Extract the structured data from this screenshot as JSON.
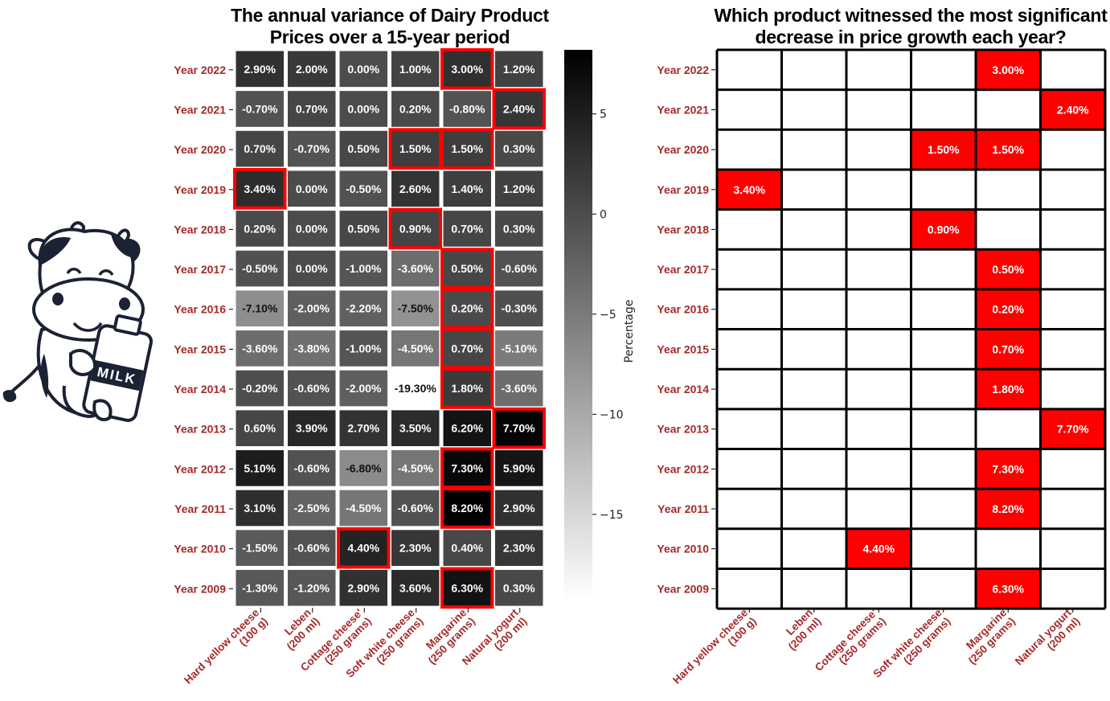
{
  "colors": {
    "label_color": "#a52a2a",
    "highlight": "#ff0000",
    "grid_line": "#000000",
    "heat_low": "#ffffff",
    "heat_high": "#000000"
  },
  "illustration": {
    "icon": "cow-holding-milk-bottle-icon",
    "bottle_text": "MILK"
  },
  "chart_data": [
    {
      "type": "heatmap",
      "title": "The annual variance of Dairy Product\nPrices over a 15-year period",
      "rows": [
        "Year 2022",
        "Year 2021",
        "Year 2020",
        "Year 2019",
        "Year 2018",
        "Year 2017",
        "Year 2016",
        "Year 2015",
        "Year 2014",
        "Year 2013",
        "Year 2012",
        "Year 2011",
        "Year 2010",
        "Year 2009"
      ],
      "columns": [
        "Hard yellow cheese\n(100 g)",
        "Leben\n(200 ml)",
        "Cottage cheese'\n(250 grams)",
        "Soft white cheese\n(250 grams)",
        "Margarine\n(250 grams)",
        "Natural yogurt\n(200 ml)"
      ],
      "values": [
        [
          2.9,
          2.0,
          0.0,
          1.0,
          3.0,
          1.2
        ],
        [
          -0.7,
          0.7,
          0.0,
          0.2,
          -0.8,
          2.4
        ],
        [
          0.7,
          -0.7,
          0.5,
          1.5,
          1.5,
          0.3
        ],
        [
          3.4,
          0.0,
          -0.5,
          2.6,
          1.4,
          1.2
        ],
        [
          0.2,
          0.0,
          0.5,
          0.9,
          0.7,
          0.3
        ],
        [
          -0.5,
          0.0,
          -1.0,
          -3.6,
          0.5,
          -0.6
        ],
        [
          -7.1,
          -2.0,
          -2.2,
          -7.5,
          0.2,
          -0.3
        ],
        [
          -3.6,
          -3.8,
          -1.0,
          -4.5,
          0.7,
          -5.1
        ],
        [
          -0.2,
          -0.6,
          -2.0,
          -19.3,
          1.8,
          -3.6
        ],
        [
          0.6,
          3.9,
          2.7,
          3.5,
          6.2,
          7.7
        ],
        [
          5.1,
          -0.6,
          -6.8,
          -4.5,
          7.3,
          5.9
        ],
        [
          3.1,
          -2.5,
          -4.5,
          -0.6,
          8.2,
          2.9
        ],
        [
          -1.5,
          -0.6,
          4.4,
          2.3,
          0.4,
          2.3
        ],
        [
          -1.3,
          -1.2,
          2.9,
          3.6,
          6.3,
          0.3
        ]
      ],
      "value_format": "%",
      "highlighted": [
        [
          0,
          4
        ],
        [
          1,
          5
        ],
        [
          2,
          3
        ],
        [
          2,
          4
        ],
        [
          3,
          0
        ],
        [
          4,
          3
        ],
        [
          5,
          4
        ],
        [
          6,
          4
        ],
        [
          7,
          4
        ],
        [
          8,
          4
        ],
        [
          9,
          5
        ],
        [
          10,
          4
        ],
        [
          11,
          4
        ],
        [
          12,
          2
        ],
        [
          13,
          4
        ]
      ],
      "colorbar": {
        "label": "Percentage",
        "range": [
          -19.3,
          8.2
        ],
        "ticks": [
          5,
          0,
          -5,
          -10,
          -15
        ]
      }
    },
    {
      "type": "table",
      "title": "Which product witnessed the most significant\ndecrease in price growth each year?",
      "rows": [
        "Year 2022",
        "Year 2021",
        "Year 2020",
        "Year 2019",
        "Year 2018",
        "Year 2017",
        "Year 2016",
        "Year 2015",
        "Year 2014",
        "Year 2013",
        "Year 2012",
        "Year 2011",
        "Year 2010",
        "Year 2009"
      ],
      "columns": [
        "Hard yellow cheese\n(100 g)",
        "Leben\n(200 ml)",
        "Cottage cheese'\n(250 grams)",
        "Soft white cheese\n(250 grams)",
        "Margarine\n(250 grams)",
        "Natural yogurt\n(200 ml)"
      ],
      "cells": [
        {
          "row": 0,
          "col": 4,
          "value": 3.0
        },
        {
          "row": 1,
          "col": 5,
          "value": 2.4
        },
        {
          "row": 2,
          "col": 3,
          "value": 1.5
        },
        {
          "row": 2,
          "col": 4,
          "value": 1.5
        },
        {
          "row": 3,
          "col": 0,
          "value": 3.4
        },
        {
          "row": 4,
          "col": 3,
          "value": 0.9
        },
        {
          "row": 5,
          "col": 4,
          "value": 0.5
        },
        {
          "row": 6,
          "col": 4,
          "value": 0.2
        },
        {
          "row": 7,
          "col": 4,
          "value": 0.7
        },
        {
          "row": 8,
          "col": 4,
          "value": 1.8
        },
        {
          "row": 9,
          "col": 5,
          "value": 7.7
        },
        {
          "row": 10,
          "col": 4,
          "value": 7.3
        },
        {
          "row": 11,
          "col": 4,
          "value": 8.2
        },
        {
          "row": 12,
          "col": 2,
          "value": 4.4
        },
        {
          "row": 13,
          "col": 4,
          "value": 6.3
        }
      ],
      "value_format": "%"
    }
  ]
}
